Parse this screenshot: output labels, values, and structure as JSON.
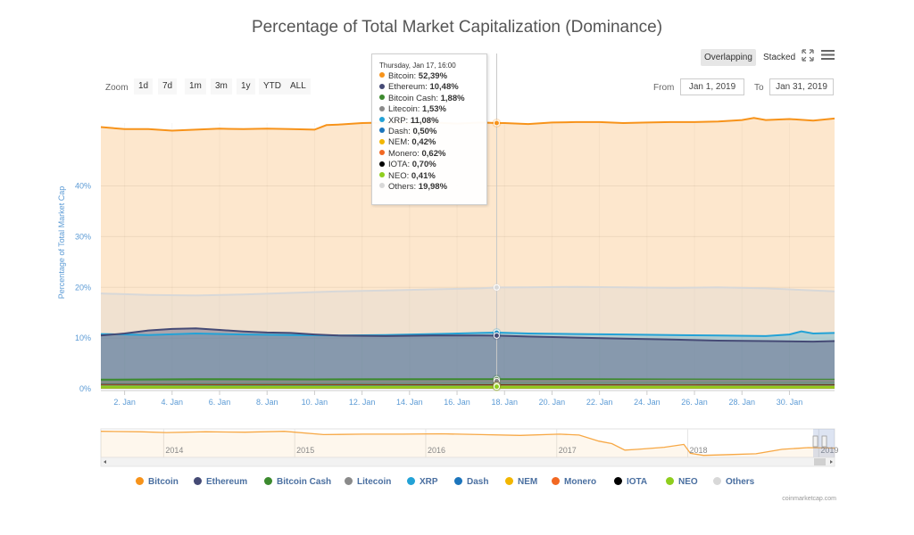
{
  "chart_title": "Percentage of Total Market Capitalization (Dominance)",
  "controls": {
    "overlapping": "Overlapping",
    "stacked": "Stacked",
    "fullscreen_icon": "expand-icon",
    "menu_icon": "hamburger-menu-icon",
    "zoom_label": "Zoom",
    "zoom_buttons": [
      "1d",
      "7d",
      "1m",
      "3m",
      "1y",
      "YTD",
      "ALL"
    ],
    "from_label": "From",
    "from_value": "Jan 1, 2019",
    "to_label": "To",
    "to_value": "Jan 31, 2019"
  },
  "tooltip": {
    "header": "Thursday, Jan 17, 16:00",
    "rows": [
      {
        "name": "Bitcoin",
        "value": "52,39%",
        "color": "#f7931a"
      },
      {
        "name": "Ethereum",
        "value": "10,48%",
        "color": "#454a75"
      },
      {
        "name": "Bitcoin Cash",
        "value": "1,88%",
        "color": "#3c8a2e"
      },
      {
        "name": "Litecoin",
        "value": "1,53%",
        "color": "#8a8a8a"
      },
      {
        "name": "XRP",
        "value": "11,08%",
        "color": "#23a2d6"
      },
      {
        "name": "Dash",
        "value": "0,50%",
        "color": "#1c75bc"
      },
      {
        "name": "NEM",
        "value": "0,42%",
        "color": "#f2b600"
      },
      {
        "name": "Monero",
        "value": "0,62%",
        "color": "#f26822"
      },
      {
        "name": "IOTA",
        "value": "0,70%",
        "color": "#000000"
      },
      {
        "name": "NEO",
        "value": "0,41%",
        "color": "#8fce1e"
      },
      {
        "name": "Others",
        "value": "19,98%",
        "color": "#d8d8d8"
      }
    ]
  },
  "legend": [
    {
      "name": "Bitcoin",
      "color": "#f7931a"
    },
    {
      "name": "Ethereum",
      "color": "#454a75"
    },
    {
      "name": "Bitcoin Cash",
      "color": "#3c8a2e"
    },
    {
      "name": "Litecoin",
      "color": "#8a8a8a"
    },
    {
      "name": "XRP",
      "color": "#23a2d6"
    },
    {
      "name": "Dash",
      "color": "#1c75bc"
    },
    {
      "name": "NEM",
      "color": "#f2b600"
    },
    {
      "name": "Monero",
      "color": "#f26822"
    },
    {
      "name": "IOTA",
      "color": "#000000"
    },
    {
      "name": "NEO",
      "color": "#8fce1e"
    },
    {
      "name": "Others",
      "color": "#d8d8d8"
    }
  ],
  "credit": "coinmarketcap.com",
  "chart_data": {
    "type": "area",
    "title": "Percentage of Total Market Capitalization (Dominance)",
    "xlabel": "",
    "ylabel": "Percentage of Total Market Cap",
    "ylim": [
      0,
      52.4
    ],
    "xlim": [
      1,
      31.9
    ],
    "y_ticks": [
      "0%",
      "10%",
      "20%",
      "30%",
      "40%"
    ],
    "y_tick_values": [
      0,
      10,
      20,
      30,
      40
    ],
    "x_ticks": [
      "2. Jan",
      "4. Jan",
      "6. Jan",
      "8. Jan",
      "10. Jan",
      "12. Jan",
      "14. Jan",
      "16. Jan",
      "18. Jan",
      "20. Jan",
      "22. Jan",
      "24. Jan",
      "26. Jan",
      "28. Jan",
      "30. Jan"
    ],
    "x_tick_values": [
      2,
      4,
      6,
      8,
      10,
      12,
      14,
      16,
      18,
      20,
      22,
      24,
      26,
      28,
      30
    ],
    "crosshair_x": 17.67,
    "grid": true,
    "legend_position": "bottom",
    "series": [
      {
        "name": "Bitcoin",
        "color": "#f7931a",
        "x": [
          1,
          2,
          3,
          4,
          5,
          6,
          7,
          8,
          9,
          10,
          10.5,
          11,
          12,
          13,
          14,
          15,
          16,
          17,
          17.67,
          18,
          19,
          20,
          21,
          22,
          23,
          24,
          25,
          26,
          27,
          28,
          28.5,
          29,
          30,
          31,
          31.9
        ],
        "y": [
          51.6,
          51.2,
          51.2,
          50.9,
          51.1,
          51.3,
          51.2,
          51.3,
          51.2,
          51.1,
          52.0,
          52.1,
          52.4,
          52.5,
          52.4,
          52.5,
          52.3,
          52.5,
          52.4,
          52.4,
          52.2,
          52.5,
          52.6,
          52.6,
          52.4,
          52.5,
          52.6,
          52.6,
          52.7,
          53.0,
          53.4,
          53.0,
          53.2,
          52.9,
          53.3
        ]
      },
      {
        "name": "Others",
        "color": "#d8d8d8",
        "x": [
          1,
          3,
          5,
          7,
          9,
          11,
          13,
          15,
          17,
          17.67,
          19,
          21,
          23,
          25,
          27,
          29,
          31,
          31.9
        ],
        "y": [
          18.8,
          18.5,
          18.4,
          18.6,
          18.9,
          19.2,
          19.4,
          19.6,
          19.8,
          19.98,
          20.0,
          20.1,
          20.0,
          19.9,
          20.0,
          19.8,
          19.4,
          19.2
        ]
      },
      {
        "name": "XRP",
        "color": "#23a2d6",
        "x": [
          1,
          3,
          5,
          7,
          9,
          11,
          13,
          15,
          17,
          17.67,
          19,
          21,
          23,
          25,
          27,
          29,
          30,
          30.5,
          31,
          31.9
        ],
        "y": [
          10.8,
          10.6,
          10.9,
          10.7,
          10.6,
          10.5,
          10.6,
          10.8,
          11.0,
          11.08,
          10.9,
          10.8,
          10.7,
          10.6,
          10.5,
          10.4,
          10.7,
          11.3,
          10.9,
          11.0
        ]
      },
      {
        "name": "Ethereum",
        "color": "#454a75",
        "x": [
          1,
          2,
          3,
          4,
          5,
          6,
          7,
          8,
          9,
          10,
          11,
          13,
          15,
          17,
          17.67,
          19,
          21,
          23,
          25,
          27,
          29,
          31,
          31.9
        ],
        "y": [
          10.5,
          10.9,
          11.5,
          11.8,
          11.9,
          11.6,
          11.3,
          11.1,
          11.0,
          10.7,
          10.5,
          10.4,
          10.5,
          10.5,
          10.48,
          10.3,
          10.1,
          9.9,
          9.7,
          9.5,
          9.4,
          9.3,
          9.4
        ]
      },
      {
        "name": "Bitcoin Cash",
        "color": "#3c8a2e",
        "x": [
          1,
          5,
          10,
          15,
          17.67,
          20,
          25,
          31.9
        ],
        "y": [
          1.8,
          1.9,
          1.85,
          1.9,
          1.88,
          1.9,
          1.85,
          1.8
        ]
      },
      {
        "name": "Litecoin",
        "color": "#8a8a8a",
        "x": [
          1,
          5,
          10,
          15,
          17.67,
          20,
          25,
          31.9
        ],
        "y": [
          1.3,
          1.4,
          1.45,
          1.5,
          1.53,
          1.55,
          1.6,
          1.6
        ]
      },
      {
        "name": "IOTA",
        "color": "#000000",
        "x": [
          1,
          10,
          17.67,
          25,
          31.9
        ],
        "y": [
          0.75,
          0.72,
          0.7,
          0.68,
          0.68
        ]
      },
      {
        "name": "Monero",
        "color": "#f26822",
        "x": [
          1,
          10,
          17.67,
          25,
          31.9
        ],
        "y": [
          0.65,
          0.63,
          0.62,
          0.61,
          0.6
        ]
      },
      {
        "name": "Dash",
        "color": "#1c75bc",
        "x": [
          1,
          10,
          17.67,
          25,
          31.9
        ],
        "y": [
          0.55,
          0.52,
          0.5,
          0.49,
          0.48
        ]
      },
      {
        "name": "NEM",
        "color": "#f2b600",
        "x": [
          1,
          10,
          17.67,
          25,
          31.9
        ],
        "y": [
          0.45,
          0.43,
          0.42,
          0.41,
          0.41
        ]
      },
      {
        "name": "NEO",
        "color": "#8fce1e",
        "x": [
          1,
          10,
          17.67,
          25,
          31.9
        ],
        "y": [
          0.42,
          0.41,
          0.41,
          0.4,
          0.4
        ]
      }
    ],
    "navigator": {
      "x_ticks": [
        "2014",
        "2015",
        "2016",
        "2017",
        "2018",
        "2019"
      ],
      "x_tick_values": [
        2014,
        2015,
        2016,
        2017,
        2018,
        2019
      ],
      "xlim": [
        2013.5,
        2019.1
      ],
      "ylim": [
        30,
        100
      ],
      "x": [
        2013.5,
        2013.8,
        2014.0,
        2014.3,
        2014.6,
        2014.9,
        2015.2,
        2015.5,
        2015.8,
        2016.1,
        2016.4,
        2016.7,
        2017.0,
        2017.15,
        2017.3,
        2017.4,
        2017.5,
        2017.6,
        2017.8,
        2017.95,
        2018.0,
        2018.1,
        2018.3,
        2018.5,
        2018.7,
        2018.9,
        2019.1
      ],
      "y": [
        94,
        93,
        91,
        93,
        92,
        94,
        86,
        87,
        87,
        88,
        86,
        84,
        87,
        85,
        70,
        64,
        48,
        50,
        55,
        62,
        40,
        35,
        37,
        39,
        50,
        54,
        53
      ]
    }
  }
}
